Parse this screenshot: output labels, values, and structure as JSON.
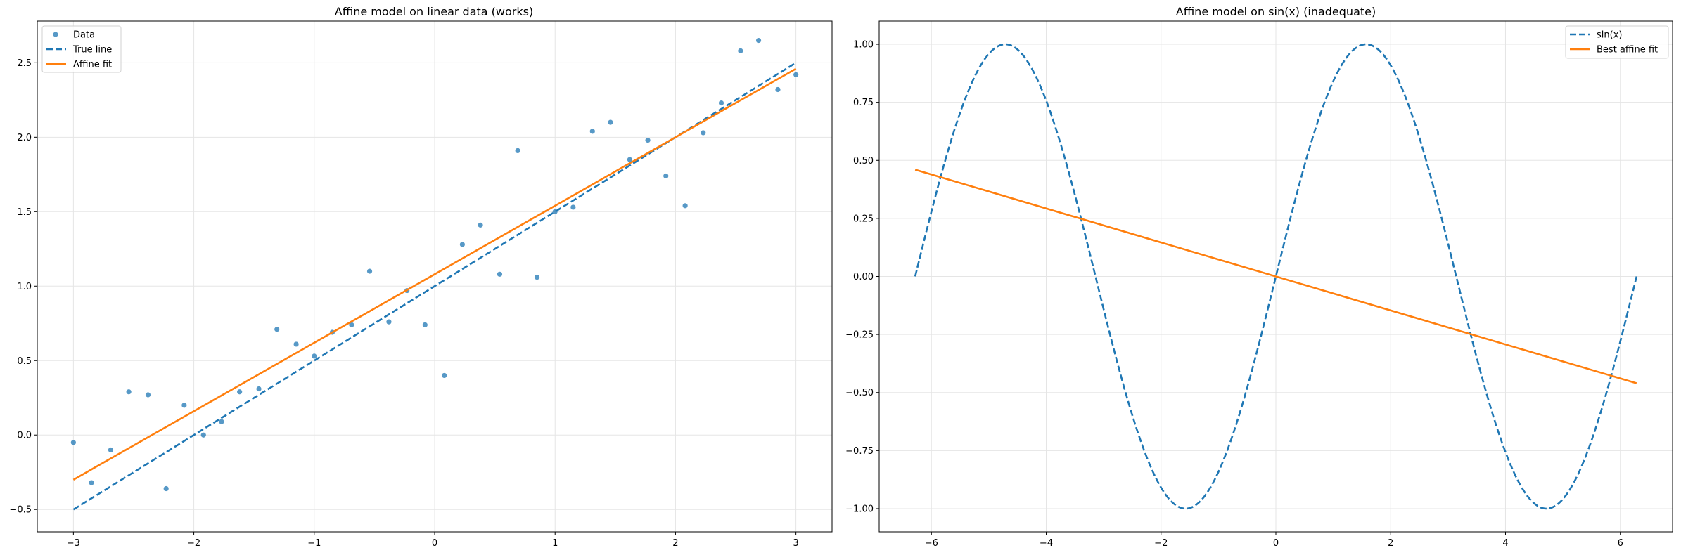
{
  "chart_data": [
    {
      "type": "scatter",
      "title": "Affine model on linear data (works)",
      "xlabel": "",
      "ylabel": "",
      "xlim": [
        -3.3,
        3.3
      ],
      "ylim": [
        -0.65,
        2.78
      ],
      "xticks": [
        -3,
        -2,
        -1,
        0,
        1,
        2,
        3
      ],
      "yticks": [
        -0.5,
        0.0,
        0.5,
        1.0,
        1.5,
        2.0,
        2.5
      ],
      "xtick_labels": [
        "−3",
        "−2",
        "−1",
        "0",
        "1",
        "2",
        "3"
      ],
      "ytick_labels": [
        "−0.5",
        "0.0",
        "0.5",
        "1.0",
        "1.5",
        "2.0",
        "2.5"
      ],
      "grid": true,
      "legend_position": "upper-left",
      "series": [
        {
          "name": "Data",
          "kind": "scatter",
          "color": "#1f77b4",
          "x": [
            -3.0,
            -2.85,
            -2.69,
            -2.54,
            -2.38,
            -2.23,
            -2.08,
            -1.92,
            -1.77,
            -1.62,
            -1.46,
            -1.31,
            -1.15,
            -1.0,
            -0.85,
            -0.69,
            -0.54,
            -0.38,
            -0.23,
            -0.08,
            0.08,
            0.23,
            0.38,
            0.54,
            0.69,
            0.85,
            1.0,
            1.15,
            1.31,
            1.46,
            1.62,
            1.77,
            1.92,
            2.08,
            2.23,
            2.38,
            2.54,
            2.69,
            2.85,
            3.0
          ],
          "y": [
            -0.05,
            -0.32,
            -0.1,
            0.29,
            0.27,
            -0.36,
            0.2,
            0.0,
            0.09,
            0.29,
            0.31,
            0.71,
            0.61,
            0.53,
            0.69,
            0.74,
            1.1,
            0.76,
            0.97,
            0.74,
            0.4,
            1.28,
            1.41,
            1.08,
            1.91,
            1.06,
            1.5,
            1.53,
            2.04,
            2.1,
            1.85,
            1.98,
            1.74,
            1.54,
            2.03,
            2.23,
            2.58,
            2.65,
            2.32,
            2.42
          ]
        },
        {
          "name": "True line",
          "kind": "line",
          "dashed": true,
          "color": "#1f77b4",
          "x": [
            -3,
            3
          ],
          "y": [
            -0.5,
            2.5
          ]
        },
        {
          "name": "Affine fit",
          "kind": "line",
          "dashed": false,
          "color": "#ff7f0e",
          "x": [
            -3,
            3
          ],
          "y": [
            -0.3,
            2.46
          ]
        }
      ]
    },
    {
      "type": "line",
      "title": "Affine model on sin(x) (inadequate)",
      "xlabel": "",
      "ylabel": "",
      "xlim": [
        -6.91,
        6.91
      ],
      "ylim": [
        -1.1,
        1.1
      ],
      "xticks": [
        -6,
        -4,
        -2,
        0,
        2,
        4,
        6
      ],
      "yticks": [
        -1.0,
        -0.75,
        -0.5,
        -0.25,
        0.0,
        0.25,
        0.5,
        0.75,
        1.0
      ],
      "xtick_labels": [
        "−6",
        "−4",
        "−2",
        "0",
        "2",
        "4",
        "6"
      ],
      "ytick_labels": [
        "−1.00",
        "−0.75",
        "−0.50",
        "−0.25",
        "0.00",
        "0.25",
        "0.50",
        "0.75",
        "1.00"
      ],
      "grid": true,
      "legend_position": "upper-right",
      "series": [
        {
          "name": "sin(x)",
          "kind": "function",
          "function": "sin",
          "dashed": true,
          "color": "#1f77b4",
          "x_range": [
            -6.283,
            6.283
          ]
        },
        {
          "name": "Best affine fit",
          "kind": "line",
          "dashed": false,
          "color": "#ff7f0e",
          "x": [
            -6.283,
            6.283
          ],
          "y": [
            0.46,
            -0.46
          ]
        }
      ]
    }
  ]
}
